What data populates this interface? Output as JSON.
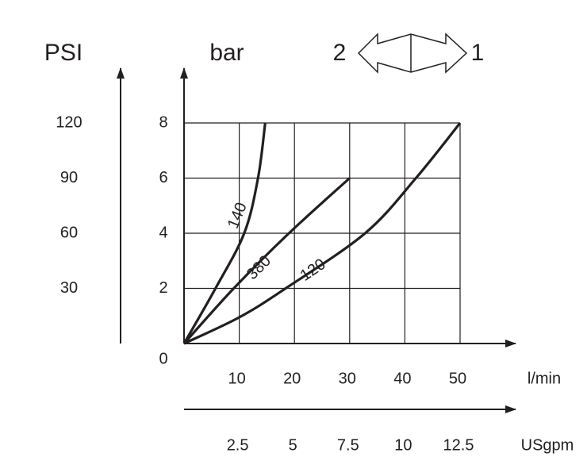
{
  "chart_data": {
    "type": "line",
    "y_label": "bar",
    "y2_label": "PSI",
    "x_label": "l/min",
    "x2_label": "USgpm",
    "flow_direction": [
      "2",
      "1"
    ],
    "xlim": [
      0,
      50
    ],
    "xticks": [
      10,
      20,
      30,
      40,
      50
    ],
    "x2lim": [
      0,
      12.5
    ],
    "x2ticks": [
      2.5,
      5,
      7.5,
      10,
      12.5
    ],
    "ylim": [
      0,
      8
    ],
    "yticks": [
      0,
      2,
      4,
      6,
      8
    ],
    "y2lim": [
      0,
      120
    ],
    "y2ticks": [
      30,
      60,
      90,
      120
    ],
    "grid": true,
    "series": [
      {
        "name": "140",
        "color": "#231f20",
        "x": [
          0,
          5.7,
          10.9,
          13.4,
          14.7
        ],
        "values": [
          0,
          2,
          4,
          6,
          8
        ]
      },
      {
        "name": "380",
        "color": "#231f20",
        "x": [
          0,
          9,
          19,
          30
        ],
        "values": [
          0,
          2,
          4,
          6
        ]
      },
      {
        "name": "120",
        "color": "#231f20",
        "x": [
          0,
          10,
          18.4,
          32.8,
          42,
          50
        ],
        "values": [
          0,
          0.95,
          2,
          4,
          6,
          8
        ]
      }
    ]
  }
}
